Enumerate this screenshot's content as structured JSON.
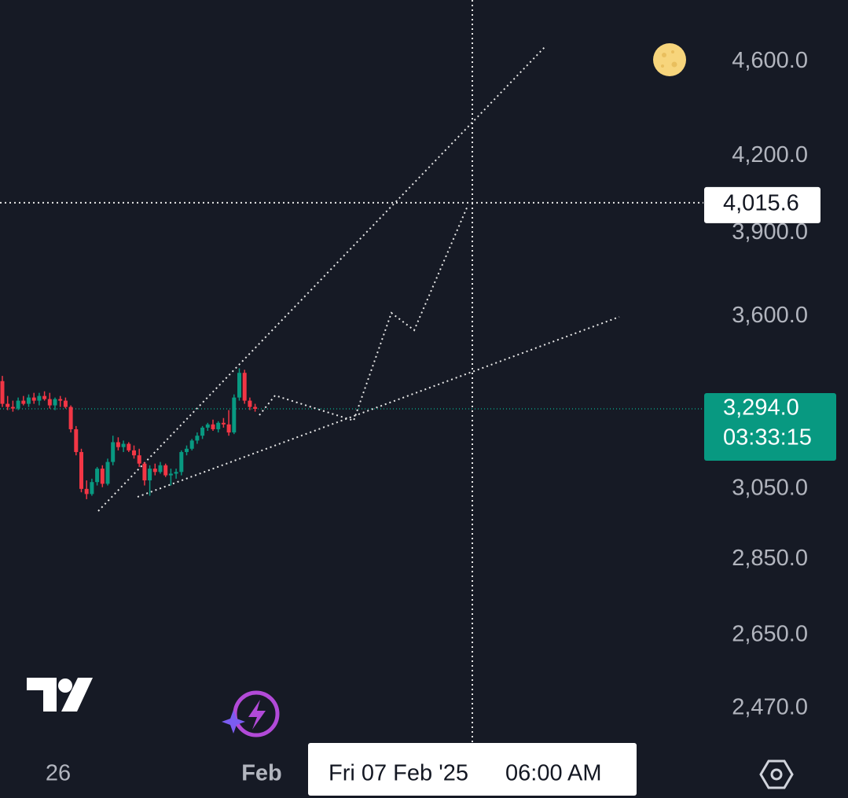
{
  "chart_data": {
    "type": "candlestick",
    "candles": {
      "open": [
        3383,
        3310,
        3300,
        3295,
        3320,
        3310,
        3330,
        3320,
        3335,
        3325,
        3305,
        3325,
        3320,
        3300,
        3230,
        3160,
        3050,
        3035,
        3070,
        3110,
        3065,
        3130,
        3190,
        3175,
        3185,
        3165,
        3150,
        3125,
        3075,
        3110,
        3100,
        3120,
        3090,
        3095,
        3100,
        3160,
        3170,
        3195,
        3210,
        3235,
        3245,
        3230,
        3250,
        3245,
        3220,
        3330,
        3410,
        3320,
        3300
      ],
      "high": [
        3400,
        3335,
        3320,
        3330,
        3335,
        3340,
        3345,
        3345,
        3350,
        3345,
        3330,
        3335,
        3330,
        3305,
        3240,
        3170,
        3075,
        3080,
        3115,
        3120,
        3140,
        3210,
        3205,
        3195,
        3190,
        3180,
        3170,
        3130,
        3120,
        3125,
        3130,
        3125,
        3110,
        3110,
        3165,
        3180,
        3200,
        3220,
        3240,
        3250,
        3260,
        3255,
        3265,
        3290,
        3340,
        3425,
        3420,
        3330,
        3310
      ],
      "low": [
        3300,
        3290,
        3285,
        3290,
        3305,
        3300,
        3310,
        3305,
        3320,
        3295,
        3290,
        3300,
        3295,
        3220,
        3150,
        3040,
        3020,
        3030,
        3060,
        3055,
        3060,
        3120,
        3165,
        3160,
        3160,
        3140,
        3115,
        3060,
        3030,
        3090,
        3095,
        3085,
        3060,
        3080,
        3090,
        3150,
        3165,
        3185,
        3200,
        3225,
        3225,
        3220,
        3235,
        3210,
        3215,
        3320,
        3310,
        3290,
        3285
      ],
      "close": [
        3310,
        3300,
        3295,
        3320,
        3310,
        3330,
        3320,
        3335,
        3325,
        3305,
        3325,
        3320,
        3300,
        3230,
        3160,
        3050,
        3035,
        3070,
        3110,
        3065,
        3130,
        3190,
        3175,
        3185,
        3165,
        3150,
        3125,
        3075,
        3110,
        3100,
        3120,
        3090,
        3095,
        3100,
        3160,
        3170,
        3195,
        3210,
        3235,
        3245,
        3230,
        3250,
        3245,
        3220,
        3330,
        3410,
        3320,
        3300,
        3294
      ]
    },
    "up_color": "#089981",
    "down_color": "#f23645",
    "log_scale": true,
    "ylim": [
      2380,
      4880
    ],
    "yticks": [
      {
        "value": 4600,
        "label": "4,600.0"
      },
      {
        "value": 4200,
        "label": "4,200.0"
      },
      {
        "value": 3900,
        "label": "3,900.0"
      },
      {
        "value": 3600,
        "label": "3,600.0"
      },
      {
        "value": 3050,
        "label": "3,050.0"
      },
      {
        "value": 2850,
        "label": "2,850.0"
      },
      {
        "value": 2650,
        "label": "2,650.0"
      },
      {
        "value": 2470,
        "label": "2,470.0"
      }
    ],
    "xtick_labels": [
      "26",
      "Feb"
    ],
    "last_price": {
      "value": 3294.0,
      "label": "3,294.0",
      "countdown": "03:33:15"
    },
    "crosshair": {
      "value": 4015.6,
      "label": "4,015.6",
      "date": "Fri 07 Feb '25",
      "time": "06:00 AM"
    }
  }
}
